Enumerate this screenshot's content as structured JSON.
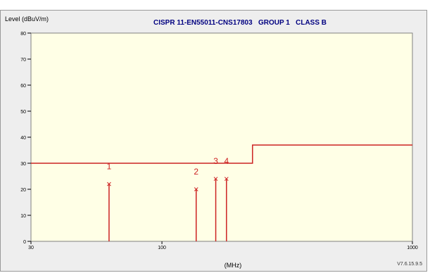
{
  "chart_data": {
    "type": "line",
    "title": "CISPR 11-EN55011-CNS17803   GROUP 1   CLASS B",
    "ylabel": "Level (dBuV/m)",
    "xlabel": "(MHz)",
    "version": "V7.6.15.9.5",
    "x_scale": "log",
    "xlim": [
      30,
      1000
    ],
    "ylim": [
      0,
      80
    ],
    "x_ticks": [
      {
        "value": 30,
        "label": "30"
      },
      {
        "value": 100,
        "label": "100"
      },
      {
        "value": 1000,
        "label": "1000"
      }
    ],
    "y_ticks": [
      0,
      10,
      20,
      30,
      40,
      50,
      60,
      70,
      80
    ],
    "limit_line": {
      "color": "#cc2222",
      "points": [
        [
          30,
          30
        ],
        [
          230,
          30
        ],
        [
          230,
          37
        ],
        [
          1000,
          37
        ]
      ]
    },
    "markers": [
      {
        "label": "1",
        "x": 61.5,
        "y": 22.0
      },
      {
        "label": "2",
        "x": 137.0,
        "y": 20.0
      },
      {
        "label": "3",
        "x": 164.0,
        "y": 24.0
      },
      {
        "label": "4",
        "x": 181.0,
        "y": 24.0
      }
    ],
    "grid": false,
    "colors": {
      "plot_bg": "#ffffe6",
      "frame_bg": "#eeeeee",
      "data": "#cc2222",
      "title": "#000080",
      "axis": "#000000"
    }
  }
}
